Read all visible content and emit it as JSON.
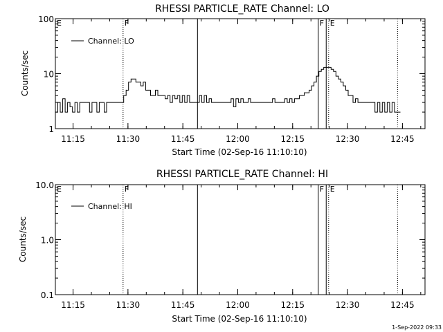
{
  "footer": {
    "timestamp": "1-Sep-2022 09:33"
  },
  "chart_data": [
    {
      "type": "line",
      "title": "RHESSI PARTICLE_RATE Channel: LO",
      "xlabel": "Start Time (02-Sep-16 11:10:10)",
      "ylabel": "Counts/sec",
      "yscale": "log",
      "xlim": [
        "11:10:10",
        "12:51:10"
      ],
      "ylim": [
        1,
        100
      ],
      "xticks": [
        "11:15",
        "11:30",
        "11:45",
        "12:00",
        "12:15",
        "12:30",
        "12:45"
      ],
      "yticks": [
        "1",
        "10",
        "100"
      ],
      "legend": {
        "label": "Channel: LO",
        "position": "top-left"
      },
      "color": "#000000",
      "markers": [
        {
          "time": "11:10:10",
          "label": "E",
          "style": "none"
        },
        {
          "time": "11:28:40",
          "label": "F",
          "style": "dotted"
        },
        {
          "time": "11:49:00",
          "label": "",
          "style": "solid"
        },
        {
          "time": "12:22:00",
          "label": "F",
          "style": "solid"
        },
        {
          "time": "12:24:10",
          "label": "",
          "style": "solid"
        },
        {
          "time": "12:24:50",
          "label": "E",
          "style": "dotted"
        },
        {
          "time": "12:43:40",
          "label": "",
          "style": "dotted"
        }
      ],
      "series": [
        {
          "name": "Channel: LO",
          "x": [
            "11:10:10",
            "11:10:50",
            "11:11:30",
            "11:12:10",
            "11:12:50",
            "11:13:30",
            "11:14:10",
            "11:14:50",
            "11:15:30",
            "11:16:10",
            "11:16:50",
            "11:17:30",
            "11:18:10",
            "11:18:50",
            "11:19:30",
            "11:20:10",
            "11:20:50",
            "11:21:30",
            "11:22:10",
            "11:22:50",
            "11:23:30",
            "11:24:10",
            "11:24:50",
            "11:25:30",
            "11:26:10",
            "11:26:50",
            "11:27:30",
            "11:28:10",
            "11:28:50",
            "11:29:30",
            "11:30:10",
            "11:30:50",
            "11:31:30",
            "11:32:10",
            "11:32:50",
            "11:33:30",
            "11:34:10",
            "11:34:50",
            "11:35:30",
            "11:36:10",
            "11:36:50",
            "11:37:30",
            "11:38:10",
            "11:38:50",
            "11:39:30",
            "11:40:10",
            "11:40:50",
            "11:41:30",
            "11:42:10",
            "11:42:50",
            "11:43:30",
            "11:44:10",
            "11:44:50",
            "11:45:30",
            "11:46:10",
            "11:46:50",
            "11:47:30",
            "11:48:10",
            "11:48:50",
            "11:49:30",
            "11:50:10",
            "11:50:50",
            "11:51:30",
            "11:52:10",
            "11:52:50",
            "11:53:30",
            "11:54:10",
            "11:54:50",
            "11:55:30",
            "11:56:10",
            "11:56:50",
            "11:57:30",
            "11:58:10",
            "11:58:50",
            "11:59:30",
            "12:00:10",
            "12:00:50",
            "12:01:30",
            "12:02:10",
            "12:02:50",
            "12:03:30",
            "12:04:10",
            "12:04:50",
            "12:05:30",
            "12:06:10",
            "12:06:50",
            "12:07:30",
            "12:08:10",
            "12:08:50",
            "12:09:30",
            "12:10:10",
            "12:10:50",
            "12:11:30",
            "12:12:10",
            "12:12:50",
            "12:13:30",
            "12:14:10",
            "12:14:50",
            "12:15:30",
            "12:16:10",
            "12:16:50",
            "12:17:30",
            "12:18:10",
            "12:18:50",
            "12:19:30",
            "12:20:10",
            "12:20:50",
            "12:21:30",
            "12:22:10",
            "12:22:50",
            "12:23:30",
            "12:24:10",
            "12:24:50",
            "12:25:30",
            "12:26:10",
            "12:26:50",
            "12:27:30",
            "12:28:10",
            "12:28:50",
            "12:29:30",
            "12:30:10",
            "12:30:50",
            "12:31:30",
            "12:32:10",
            "12:32:50",
            "12:33:30",
            "12:34:10",
            "12:34:50",
            "12:35:30",
            "12:36:10",
            "12:36:50",
            "12:37:30",
            "12:38:10",
            "12:38:50",
            "12:39:30",
            "12:40:10",
            "12:40:50",
            "12:41:30",
            "12:42:10",
            "12:42:50",
            "12:43:30"
          ],
          "values": [
            2,
            3,
            2,
            3.5,
            2,
            3,
            2.5,
            2,
            3,
            2,
            3,
            3,
            3,
            3,
            2,
            3,
            3,
            2,
            3,
            3,
            2,
            3,
            3,
            3,
            3,
            3,
            3,
            3,
            4,
            5,
            7,
            8,
            8,
            7,
            7,
            6,
            7,
            5,
            5,
            4,
            4,
            5,
            4,
            4,
            4,
            3.5,
            4,
            3,
            4,
            3.5,
            4,
            3,
            4,
            3,
            4,
            3,
            3,
            3,
            3,
            4,
            3,
            4,
            3,
            3.5,
            3,
            3,
            3,
            3,
            3,
            3,
            3,
            3,
            3.5,
            2.5,
            3.5,
            3,
            3.5,
            3,
            3,
            3.5,
            3,
            3,
            3,
            3,
            3,
            3,
            3,
            3,
            3,
            3.5,
            3,
            3,
            3,
            3,
            3.5,
            3,
            3.5,
            3,
            3.5,
            3.5,
            4,
            4,
            4.5,
            4.5,
            5,
            6,
            7,
            9,
            11,
            12,
            13,
            13,
            13,
            12,
            11,
            9,
            8,
            7,
            6,
            5,
            4,
            4,
            3,
            3.5,
            3,
            3,
            3,
            3,
            3,
            3,
            3,
            2,
            3,
            2,
            3,
            2,
            3,
            2,
            3,
            2,
            2
          ]
        }
      ]
    },
    {
      "type": "line",
      "title": "RHESSI PARTICLE_RATE Channel: HI",
      "xlabel": "Start Time (02-Sep-16 11:10:10)",
      "ylabel": "Counts/sec",
      "yscale": "log",
      "xlim": [
        "11:10:10",
        "12:51:10"
      ],
      "ylim": [
        0.1,
        10
      ],
      "xticks": [
        "11:15",
        "11:30",
        "11:45",
        "12:00",
        "12:15",
        "12:30",
        "12:45"
      ],
      "yticks": [
        "0.1",
        "1.0",
        "10.0"
      ],
      "legend": {
        "label": "Channel: HI",
        "position": "top-left"
      },
      "color": "#000000",
      "markers": [
        {
          "time": "11:10:10",
          "label": "E",
          "style": "none"
        },
        {
          "time": "11:28:40",
          "label": "F",
          "style": "dotted"
        },
        {
          "time": "11:49:00",
          "label": "",
          "style": "solid"
        },
        {
          "time": "12:22:00",
          "label": "F",
          "style": "solid"
        },
        {
          "time": "12:24:10",
          "label": "",
          "style": "solid"
        },
        {
          "time": "12:24:50",
          "label": "E",
          "style": "dotted"
        },
        {
          "time": "12:43:40",
          "label": "",
          "style": "dotted"
        }
      ],
      "series": [
        {
          "name": "Channel: HI",
          "x": [],
          "values": []
        }
      ]
    }
  ]
}
